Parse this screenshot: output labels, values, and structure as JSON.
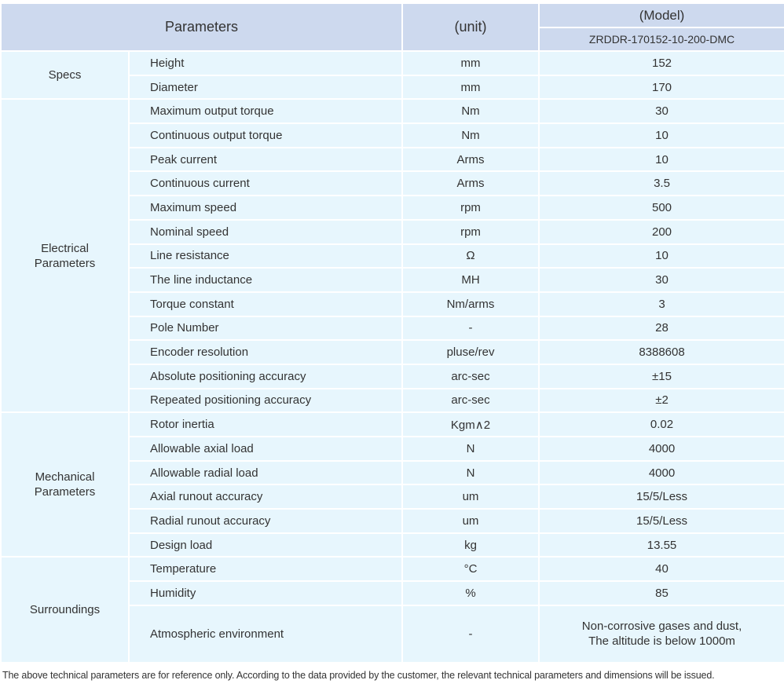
{
  "header": {
    "parameters": "Parameters",
    "unit": "(unit)",
    "model_label": "(Model)",
    "model_name": "ZRDDR-170152-10-200-DMC"
  },
  "groups": [
    {
      "label": "Specs",
      "rows": [
        [
          "Height",
          "mm",
          "152"
        ],
        [
          "Diameter",
          "mm",
          "170"
        ]
      ]
    },
    {
      "label": "Electrical\nParameters",
      "rows": [
        [
          "Maximum output torque",
          "Nm",
          "30"
        ],
        [
          "Continuous output torque",
          "Nm",
          "10"
        ],
        [
          "Peak current",
          "Arms",
          "10"
        ],
        [
          "Continuous current",
          "Arms",
          "3.5"
        ],
        [
          "Maximum speed",
          "rpm",
          "500"
        ],
        [
          "Nominal speed",
          "rpm",
          "200"
        ],
        [
          "Line resistance",
          "Ω",
          "10"
        ],
        [
          "The line inductance",
          "MH",
          "30"
        ],
        [
          "Torque constant",
          "Nm/arms",
          "3"
        ],
        [
          "Pole Number",
          "-",
          "28"
        ],
        [
          "Encoder resolution",
          "pluse/rev",
          "8388608"
        ],
        [
          "Absolute positioning accuracy",
          "arc-sec",
          "±15"
        ],
        [
          "Repeated positioning accuracy",
          "arc-sec",
          "±2"
        ]
      ]
    },
    {
      "label": "Mechanical\nParameters",
      "rows": [
        [
          "Rotor inertia",
          "Kgm∧2",
          "0.02"
        ],
        [
          "Allowable axial load",
          "N",
          "4000"
        ],
        [
          "Allowable radial load",
          "N",
          "4000"
        ],
        [
          "Axial runout accuracy",
          "um",
          "15/5/Less"
        ],
        [
          "Radial runout accuracy",
          "um",
          "15/5/Less"
        ],
        [
          "Design load",
          "kg",
          "13.55"
        ]
      ]
    },
    {
      "label": "Surroundings",
      "rows": [
        [
          "Temperature",
          "°C",
          "40"
        ],
        [
          "Humidity",
          "%",
          "85"
        ],
        [
          "Atmospheric environment",
          "-",
          "Non-corrosive gases and dust,\nThe altitude is below 1000m"
        ]
      ]
    }
  ],
  "footnote": "The above technical parameters are for reference only. According to the data provided by the customer, the relevant technical parameters and dimensions will be issued."
}
